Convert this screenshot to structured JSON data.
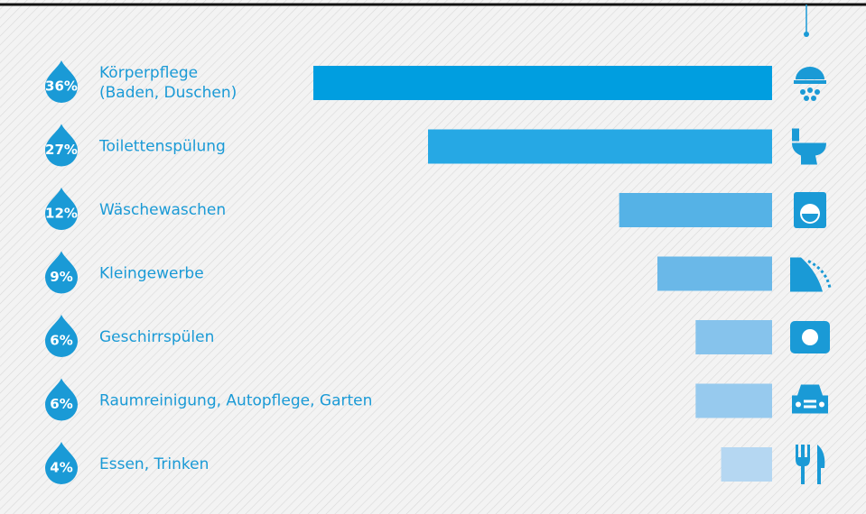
{
  "chart_data": {
    "type": "bar",
    "categories": [
      "Körperpflege\n(Baden, Duschen)",
      "Toilettenspülung",
      "Wäschewaschen",
      "Kleingewerbe",
      "Geschirrspülen",
      "Raumreinigung, Autopflege, Garten",
      "Essen, Trinken"
    ],
    "values": [
      36,
      27,
      12,
      9,
      6,
      6,
      4
    ],
    "value_labels": [
      "36%",
      "27%",
      "12%",
      "9%",
      "6%",
      "6%",
      "4%"
    ],
    "colors": [
      "#009ee0",
      "#26a8e4",
      "#55b2e6",
      "#6ab8e8",
      "#86c3ec",
      "#97caee",
      "#b5d7f2"
    ]
  }
}
